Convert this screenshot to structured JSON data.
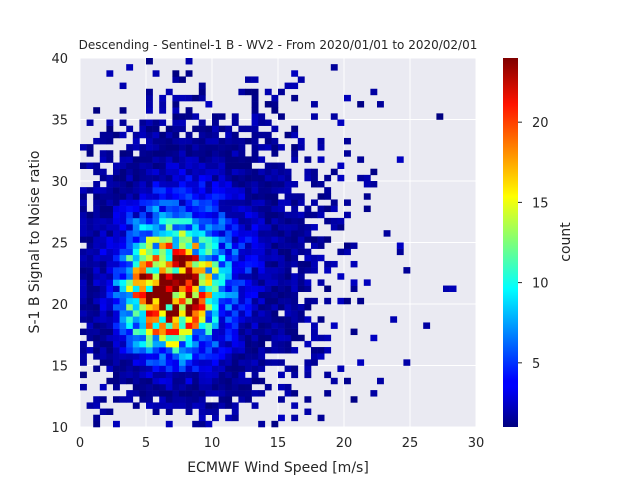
{
  "chart_data": {
    "type": "heatmap",
    "title": "Descending - Sentinel-1 B - WV2 - From 2020/01/01 to 2020/02/01",
    "xlabel": "ECMWF Wind Speed [m/s]",
    "ylabel": "S-1 B Signal to Noise ratio",
    "xlim": [
      0,
      30
    ],
    "ylim": [
      10,
      40
    ],
    "xticks": [
      "0",
      "5",
      "10",
      "15",
      "20",
      "25",
      "30"
    ],
    "yticks": [
      "10",
      "15",
      "20",
      "25",
      "30",
      "35",
      "40"
    ],
    "grid": true,
    "bins": {
      "x_width": 0.5,
      "y_width": 0.5
    },
    "colorbar": {
      "label": "count",
      "colormap": "jet",
      "range": [
        1,
        24
      ],
      "ticks": [
        "5",
        "10",
        "15",
        "20"
      ]
    },
    "density_peak": {
      "x": 6.5,
      "y": 20.5,
      "count": 24
    },
    "density_model": {
      "core": {
        "cx": 6.7,
        "cy": 21.0,
        "sx": 1.9,
        "sy": 2.8,
        "peak": 18
      },
      "mid": {
        "cx": 7.5,
        "cy": 22.0,
        "sx": 3.2,
        "sy": 4.5,
        "peak": 7
      },
      "halo": {
        "cx": 9.0,
        "cy": 24.5,
        "sx": 5.5,
        "sy": 6.5,
        "peak": 2.2
      }
    }
  },
  "colors": {
    "axes_background": "#eaeaf2",
    "grid": "#ffffff",
    "text": "#262626"
  }
}
